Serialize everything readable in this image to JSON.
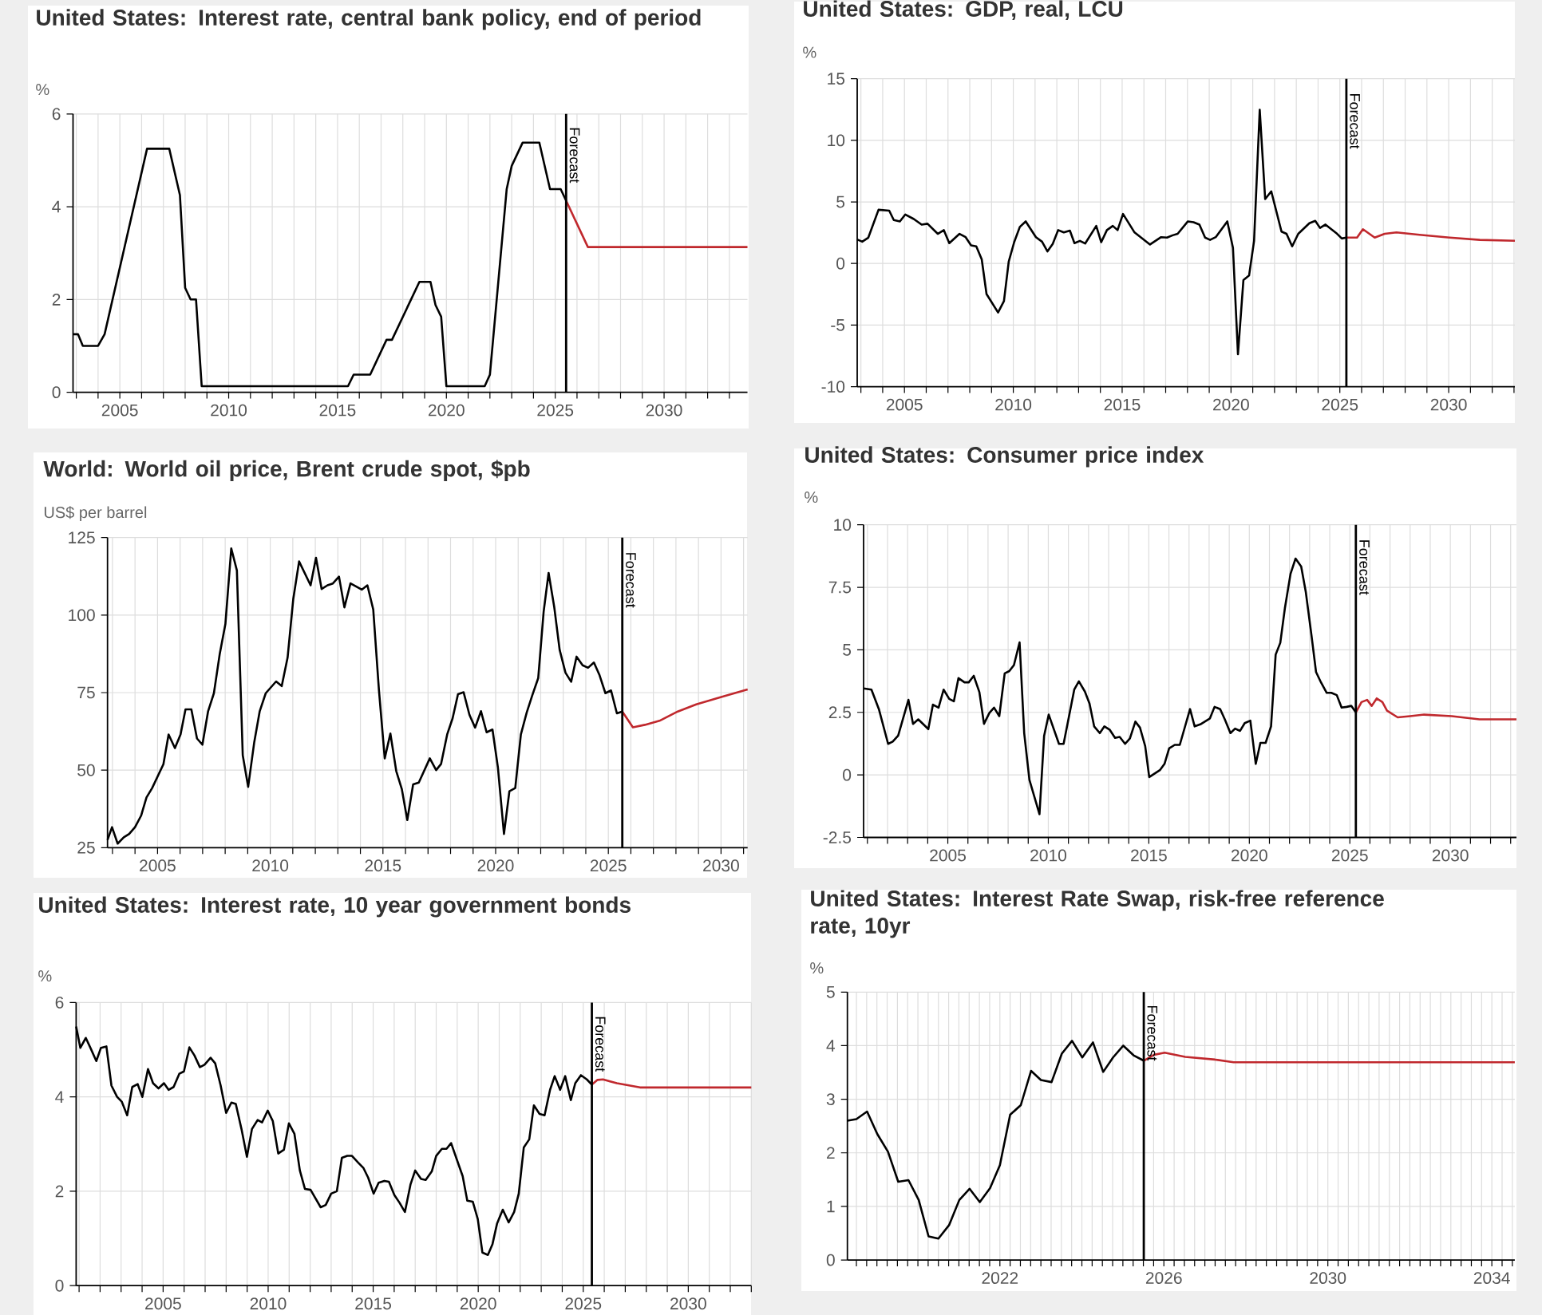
{
  "chart_data": [
    {
      "type": "line",
      "title": "United States: Interest rate, central bank policy, end of period",
      "ylabel": "%",
      "grid": true,
      "xlim": [
        2002.85,
        2033.83
      ],
      "ylim": [
        0,
        6
      ],
      "yticks": [
        0,
        2,
        4,
        6
      ],
      "xticks": [
        {
          "value": 2003,
          "label": null
        },
        {
          "value": 2004,
          "label": null
        },
        2005,
        {
          "value": 2006,
          "label": null
        },
        {
          "value": 2007,
          "label": null
        },
        {
          "value": 2008,
          "label": null
        },
        {
          "value": 2009,
          "label": null
        },
        2010,
        {
          "value": 2011,
          "label": null
        },
        {
          "value": 2012,
          "label": null
        },
        {
          "value": 2013,
          "label": null
        },
        {
          "value": 2014,
          "label": null
        },
        2015,
        {
          "value": 2016,
          "label": null
        },
        {
          "value": 2017,
          "label": null
        },
        {
          "value": 2018,
          "label": null
        },
        {
          "value": 2019,
          "label": null
        },
        2020,
        {
          "value": 2021,
          "label": null
        },
        {
          "value": 2022,
          "label": null
        },
        {
          "value": 2023,
          "label": null
        },
        {
          "value": 2024,
          "label": null
        },
        2025,
        {
          "value": 2026,
          "label": null
        },
        {
          "value": 2027,
          "label": null
        },
        {
          "value": 2028,
          "label": null
        },
        {
          "value": 2029,
          "label": null
        },
        2030,
        {
          "value": 2031,
          "label": null
        },
        {
          "value": 2032,
          "label": null
        },
        {
          "value": 2033,
          "label": null
        }
      ],
      "ref_lines": [
        {
          "axis": "x",
          "value": 2025.5,
          "label": "Forecast",
          "color": "#000000"
        }
      ],
      "series": [
        {
          "color": "#000000",
          "x": [
            2002.85,
            2003.08,
            2003.3,
            2004.0,
            2004.3,
            2006.25,
            2007.27,
            2007.76,
            2008.0,
            2008.25,
            2008.5,
            2008.76,
            2015.48,
            2015.74,
            2016.5,
            2017.25,
            2017.5,
            2018.76,
            2019.27,
            2019.5,
            2019.76,
            2020.0,
            2021.76,
            2022.0,
            2022.77,
            2023.0,
            2023.5,
            2024.27,
            2024.76,
            2025.25,
            2025.5
          ],
          "values": [
            1.25,
            1.25,
            1.0,
            1.0,
            1.25,
            5.25,
            5.25,
            4.25,
            2.25,
            2.0,
            2.0,
            0.13,
            0.13,
            0.38,
            0.38,
            1.13,
            1.13,
            2.38,
            2.38,
            1.88,
            1.63,
            0.13,
            0.13,
            0.38,
            4.38,
            4.88,
            5.38,
            5.38,
            4.38,
            4.38,
            4.13
          ]
        },
        {
          "color": "#c0282d",
          "x": [
            2025.5,
            2026.5,
            2027.0,
            2033.83
          ],
          "values": [
            4.13,
            3.13,
            3.13,
            3.13
          ]
        }
      ]
    },
    {
      "type": "line",
      "title": "United States: GDP, real, LCU",
      "ylabel": "%",
      "grid": true,
      "xlim": [
        2002.83,
        2033.04
      ],
      "ylim": [
        -10,
        15
      ],
      "yticks": [
        -10,
        -5,
        0,
        5,
        10,
        15
      ],
      "xticks": [
        {
          "value": 2003,
          "label": null
        },
        {
          "value": 2004,
          "label": null
        },
        2005,
        {
          "value": 2006,
          "label": null
        },
        {
          "value": 2007,
          "label": null
        },
        {
          "value": 2008,
          "label": null
        },
        {
          "value": 2009,
          "label": null
        },
        2010,
        {
          "value": 2011,
          "label": null
        },
        {
          "value": 2012,
          "label": null
        },
        {
          "value": 2013,
          "label": null
        },
        {
          "value": 2014,
          "label": null
        },
        2015,
        {
          "value": 2016,
          "label": null
        },
        {
          "value": 2017,
          "label": null
        },
        {
          "value": 2018,
          "label": null
        },
        {
          "value": 2019,
          "label": null
        },
        2020,
        {
          "value": 2021,
          "label": null
        },
        {
          "value": 2022,
          "label": null
        },
        {
          "value": 2023,
          "label": null
        },
        {
          "value": 2024,
          "label": null
        },
        2025,
        {
          "value": 2026,
          "label": null
        },
        {
          "value": 2027,
          "label": null
        },
        {
          "value": 2028,
          "label": null
        },
        {
          "value": 2029,
          "label": null
        },
        2030,
        {
          "value": 2031,
          "label": null
        },
        {
          "value": 2032,
          "label": null
        },
        {
          "value": 2033,
          "label": null
        }
      ],
      "ref_lines": [
        {
          "axis": "x",
          "value": 2025.3,
          "label": "Forecast",
          "color": "#000000"
        }
      ],
      "series": [
        {
          "color": "#000000",
          "x": [
            2002.83,
            2003.06,
            2003.34,
            2003.81,
            2004.3,
            2004.51,
            2004.79,
            2005.04,
            2005.43,
            2005.79,
            2006.06,
            2006.53,
            2006.81,
            2007.06,
            2007.53,
            2007.81,
            2008.06,
            2008.3,
            2008.55,
            2008.77,
            2009.3,
            2009.57,
            2009.79,
            2010.04,
            2010.3,
            2010.57,
            2011.04,
            2011.32,
            2011.57,
            2011.81,
            2012.06,
            2012.32,
            2012.6,
            2012.81,
            2013.06,
            2013.3,
            2013.81,
            2014.04,
            2014.3,
            2014.57,
            2014.79,
            2015.04,
            2015.57,
            2016.28,
            2016.79,
            2017.06,
            2017.32,
            2017.55,
            2018.02,
            2018.28,
            2018.55,
            2018.81,
            2019.04,
            2019.3,
            2019.83,
            2020.09,
            2020.32,
            2020.57,
            2020.83,
            2021.06,
            2021.32,
            2021.57,
            2021.85,
            2022.32,
            2022.55,
            2022.81,
            2023.09,
            2023.6,
            2023.87,
            2024.09,
            2024.34,
            2024.83,
            2025.09,
            2025.3
          ],
          "values": [
            1.95,
            1.77,
            2.1,
            4.36,
            4.29,
            3.53,
            3.42,
            3.98,
            3.61,
            3.16,
            3.23,
            2.41,
            2.71,
            1.65,
            2.41,
            2.14,
            1.47,
            1.39,
            0.34,
            -2.48,
            -3.98,
            -3.05,
            0.15,
            1.73,
            2.97,
            3.42,
            2.14,
            1.77,
            0.98,
            1.58,
            2.71,
            2.52,
            2.67,
            1.65,
            1.84,
            1.62,
            3.05,
            1.73,
            2.71,
            3.05,
            2.71,
            4.02,
            2.52,
            1.54,
            2.14,
            2.1,
            2.29,
            2.41,
            3.42,
            3.35,
            3.16,
            2.1,
            1.92,
            2.14,
            3.42,
            1.28,
            -7.37,
            -1.35,
            -0.98,
            1.84,
            12.48,
            5.23,
            5.86,
            2.59,
            2.41,
            1.39,
            2.41,
            3.27,
            3.46,
            2.89,
            3.16,
            2.48,
            2.03,
            2.1
          ]
        },
        {
          "color": "#c0282d",
          "x": [
            2025.3,
            2025.79,
            2026.06,
            2026.6,
            2027.06,
            2027.6,
            2028.66,
            2030.04,
            2031.43,
            2033.04
          ],
          "values": [
            2.1,
            2.1,
            2.78,
            2.1,
            2.41,
            2.52,
            2.33,
            2.1,
            1.92,
            1.84
          ]
        }
      ]
    },
    {
      "type": "line",
      "title": "World: World oil price, Brent crude spot, $pb",
      "ylabel": "US$ per barrel",
      "grid": true,
      "xlim": [
        2002.78,
        2031.18
      ],
      "ylim": [
        25,
        125
      ],
      "yticks": [
        25,
        50,
        75,
        100,
        125
      ],
      "xticks": [
        {
          "value": 2003,
          "label": null
        },
        {
          "value": 2004,
          "label": null
        },
        2005,
        {
          "value": 2006,
          "label": null
        },
        {
          "value": 2007,
          "label": null
        },
        {
          "value": 2008,
          "label": null
        },
        {
          "value": 2009,
          "label": null
        },
        2010,
        {
          "value": 2011,
          "label": null
        },
        {
          "value": 2012,
          "label": null
        },
        {
          "value": 2013,
          "label": null
        },
        {
          "value": 2014,
          "label": null
        },
        2015,
        {
          "value": 2016,
          "label": null
        },
        {
          "value": 2017,
          "label": null
        },
        {
          "value": 2018,
          "label": null
        },
        {
          "value": 2019,
          "label": null
        },
        2020,
        {
          "value": 2021,
          "label": null
        },
        {
          "value": 2022,
          "label": null
        },
        {
          "value": 2023,
          "label": null
        },
        {
          "value": 2024,
          "label": null
        },
        2025,
        {
          "value": 2026,
          "label": null
        },
        {
          "value": 2027,
          "label": null
        },
        {
          "value": 2028,
          "label": null
        },
        {
          "value": 2029,
          "label": null
        },
        2030,
        {
          "value": 2031,
          "label": null
        }
      ],
      "ref_lines": [
        {
          "axis": "x",
          "value": 2025.62,
          "label": "Forecast",
          "color": "#000000"
        }
      ],
      "series": [
        {
          "color": "#000000",
          "x": [
            2002.78,
            2002.98,
            2003.23,
            2003.5,
            2003.74,
            2004.0,
            2004.27,
            2004.51,
            2004.76,
            2005.26,
            2005.49,
            2005.77,
            2006.02,
            2006.24,
            2006.5,
            2006.75,
            2006.99,
            2007.24,
            2007.5,
            2007.76,
            2008.01,
            2008.27,
            2008.52,
            2008.78,
            2009.02,
            2009.29,
            2009.53,
            2009.8,
            2010.26,
            2010.51,
            2010.77,
            2011.02,
            2011.28,
            2011.79,
            2012.03,
            2012.28,
            2012.54,
            2012.78,
            2013.05,
            2013.29,
            2013.56,
            2014.06,
            2014.31,
            2014.57,
            2014.82,
            2015.08,
            2015.33,
            2015.59,
            2015.84,
            2016.08,
            2016.34,
            2016.59,
            2017.08,
            2017.36,
            2017.58,
            2017.85,
            2018.09,
            2018.33,
            2018.58,
            2018.84,
            2019.09,
            2019.35,
            2019.6,
            2019.86,
            2020.1,
            2020.37,
            2020.61,
            2020.87,
            2021.12,
            2021.38,
            2021.62,
            2021.89,
            2022.13,
            2022.35,
            2022.6,
            2022.84,
            2023.1,
            2023.35,
            2023.59,
            2023.86,
            2024.1,
            2024.36,
            2024.6,
            2024.87,
            2025.12,
            2025.38,
            2025.62
          ],
          "values": [
            27.5,
            31.6,
            26.3,
            28.3,
            29.4,
            31.6,
            35.3,
            41.2,
            44.2,
            51.9,
            61.5,
            57.1,
            61.5,
            69.6,
            69.6,
            60.2,
            58.2,
            68.9,
            74.8,
            87.5,
            97.1,
            121.5,
            114.4,
            54.8,
            44.6,
            59.0,
            68.9,
            74.8,
            78.6,
            77.1,
            86.3,
            105.1,
            117.3,
            109.6,
            118.5,
            108.4,
            109.6,
            110.2,
            112.4,
            102.5,
            110.2,
            108.2,
            109.6,
            101.8,
            76.0,
            53.8,
            61.8,
            49.7,
            43.8,
            33.9,
            45.4,
            46.0,
            53.8,
            50.0,
            52.0,
            61.5,
            66.7,
            74.5,
            75.1,
            67.8,
            63.7,
            69.0,
            62.2,
            63.1,
            50.9,
            29.4,
            43.2,
            44.2,
            61.5,
            68.6,
            74.0,
            79.7,
            101.1,
            113.6,
            102.6,
            88.8,
            81.4,
            78.5,
            86.6,
            83.8,
            83.0,
            84.7,
            80.8,
            74.8,
            75.7,
            68.3,
            68.9
          ]
        },
        {
          "color": "#c0282d",
          "x": [
            2025.62,
            2026.09,
            2026.62,
            2027.27,
            2028.08,
            2028.9,
            2030.01,
            2031.18
          ],
          "values": [
            68.9,
            63.8,
            64.6,
            65.9,
            68.9,
            71.2,
            73.6,
            76.0
          ]
        }
      ]
    },
    {
      "type": "line",
      "title": "United States: Consumer price index",
      "ylabel": "%",
      "grid": true,
      "xlim": [
        2000.81,
        2033.29
      ],
      "ylim": [
        -2.5,
        10
      ],
      "yticks": [
        -2.5,
        0,
        2.5,
        5,
        7.5,
        10
      ],
      "xticks": [
        {
          "value": 2001,
          "label": null
        },
        {
          "value": 2002,
          "label": null
        },
        {
          "value": 2003,
          "label": null
        },
        {
          "value": 2004,
          "label": null
        },
        2005,
        {
          "value": 2006,
          "label": null
        },
        {
          "value": 2007,
          "label": null
        },
        {
          "value": 2008,
          "label": null
        },
        {
          "value": 2009,
          "label": null
        },
        2010,
        {
          "value": 2011,
          "label": null
        },
        {
          "value": 2012,
          "label": null
        },
        {
          "value": 2013,
          "label": null
        },
        {
          "value": 2014,
          "label": null
        },
        2015,
        {
          "value": 2016,
          "label": null
        },
        {
          "value": 2017,
          "label": null
        },
        {
          "value": 2018,
          "label": null
        },
        {
          "value": 2019,
          "label": null
        },
        2020,
        {
          "value": 2021,
          "label": null
        },
        {
          "value": 2022,
          "label": null
        },
        {
          "value": 2023,
          "label": null
        },
        {
          "value": 2024,
          "label": null
        },
        2025,
        {
          "value": 2026,
          "label": null
        },
        {
          "value": 2027,
          "label": null
        },
        {
          "value": 2028,
          "label": null
        },
        {
          "value": 2029,
          "label": null
        },
        2030,
        {
          "value": 2031,
          "label": null
        },
        {
          "value": 2032,
          "label": null
        },
        {
          "value": 2033,
          "label": null
        }
      ],
      "ref_lines": [
        {
          "axis": "x",
          "value": 2025.3,
          "label": "Forecast",
          "color": "#000000"
        }
      ],
      "series": [
        {
          "color": "#000000",
          "x": [
            2000.81,
            2001.2,
            2001.57,
            2002.03,
            2002.26,
            2002.53,
            2003.04,
            2003.27,
            2003.53,
            2004.03,
            2004.26,
            2004.54,
            2004.79,
            2005.07,
            2005.3,
            2005.53,
            2005.83,
            2006.04,
            2006.29,
            2006.57,
            2006.8,
            2007.07,
            2007.3,
            2007.56,
            2007.83,
            2008.06,
            2008.29,
            2008.57,
            2008.8,
            2009.06,
            2009.56,
            2009.79,
            2010.02,
            2010.53,
            2010.76,
            2011.29,
            2011.52,
            2011.82,
            2012.05,
            2012.28,
            2012.56,
            2012.79,
            2013.06,
            2013.32,
            2013.55,
            2013.82,
            2014.06,
            2014.33,
            2014.56,
            2014.82,
            2015.02,
            2015.55,
            2015.78,
            2016.01,
            2016.29,
            2016.54,
            2017.05,
            2017.28,
            2017.56,
            2018.04,
            2018.27,
            2018.55,
            2018.78,
            2019.06,
            2019.29,
            2019.54,
            2019.77,
            2020.05,
            2020.32,
            2020.55,
            2020.81,
            2021.08,
            2021.31,
            2021.54,
            2021.77,
            2022.05,
            2022.3,
            2022.58,
            2022.81,
            2023.09,
            2023.32,
            2023.57,
            2023.85,
            2024.08,
            2024.35,
            2024.59,
            2024.84,
            2025.07,
            2025.3
          ],
          "values": [
            3.46,
            3.41,
            2.63,
            1.24,
            1.33,
            1.57,
            3.0,
            2.04,
            2.22,
            1.83,
            2.81,
            2.69,
            3.41,
            3.04,
            2.94,
            3.87,
            3.7,
            3.7,
            3.96,
            3.31,
            2.04,
            2.48,
            2.69,
            2.35,
            4.06,
            4.15,
            4.39,
            5.3,
            1.67,
            -0.2,
            -1.57,
            1.56,
            2.41,
            1.24,
            1.24,
            3.41,
            3.74,
            3.33,
            2.85,
            1.94,
            1.67,
            1.94,
            1.8,
            1.48,
            1.52,
            1.24,
            1.46,
            2.13,
            1.89,
            1.15,
            -0.09,
            0.19,
            0.44,
            1.06,
            1.2,
            1.2,
            2.63,
            1.94,
            2.02,
            2.26,
            2.72,
            2.63,
            2.22,
            1.67,
            1.85,
            1.76,
            2.07,
            2.17,
            0.44,
            1.28,
            1.28,
            1.94,
            4.81,
            5.28,
            6.67,
            8.04,
            8.65,
            8.33,
            7.31,
            5.59,
            4.11,
            3.69,
            3.28,
            3.28,
            3.19,
            2.69,
            2.72,
            2.76,
            2.5
          ]
        },
        {
          "color": "#c0282d",
          "x": [
            2025.3,
            2025.58,
            2025.86,
            2026.09,
            2026.34,
            2026.62,
            2026.85,
            2027.38,
            2028.0,
            2028.69,
            2030.07,
            2031.45,
            2033.29
          ],
          "values": [
            2.5,
            2.91,
            3.0,
            2.76,
            3.06,
            2.91,
            2.57,
            2.3,
            2.35,
            2.41,
            2.35,
            2.22,
            2.22
          ]
        }
      ]
    },
    {
      "type": "line",
      "title": "United States: Interest rate, 10 year government bonds",
      "ylabel": "%",
      "grid": true,
      "xlim": [
        2000.86,
        2033.0
      ],
      "ylim": [
        0,
        6
      ],
      "yticks": [
        0,
        2,
        4,
        6
      ],
      "xticks": [
        {
          "value": 2001,
          "label": null
        },
        {
          "value": 2002,
          "label": null
        },
        {
          "value": 2003,
          "label": null
        },
        {
          "value": 2004,
          "label": null
        },
        2005,
        {
          "value": 2006,
          "label": null
        },
        {
          "value": 2007,
          "label": null
        },
        {
          "value": 2008,
          "label": null
        },
        {
          "value": 2009,
          "label": null
        },
        2010,
        {
          "value": 2011,
          "label": null
        },
        {
          "value": 2012,
          "label": null
        },
        {
          "value": 2013,
          "label": null
        },
        {
          "value": 2014,
          "label": null
        },
        2015,
        {
          "value": 2016,
          "label": null
        },
        {
          "value": 2017,
          "label": null
        },
        {
          "value": 2018,
          "label": null
        },
        {
          "value": 2019,
          "label": null
        },
        2020,
        {
          "value": 2021,
          "label": null
        },
        {
          "value": 2022,
          "label": null
        },
        {
          "value": 2023,
          "label": null
        },
        {
          "value": 2024,
          "label": null
        },
        2025,
        {
          "value": 2026,
          "label": null
        },
        {
          "value": 2027,
          "label": null
        },
        {
          "value": 2028,
          "label": null
        },
        {
          "value": 2029,
          "label": null
        },
        2030,
        {
          "value": 2031,
          "label": null
        },
        {
          "value": 2032,
          "label": null
        },
        {
          "value": 2033,
          "label": null
        }
      ],
      "ref_lines": [
        {
          "axis": "x",
          "value": 2025.41,
          "label": "Forecast",
          "color": "#000000"
        }
      ],
      "series": [
        {
          "color": "#000000",
          "x": [
            2000.86,
            2001.06,
            2001.32,
            2001.56,
            2001.82,
            2002.04,
            2002.3,
            2002.54,
            2002.81,
            2003.03,
            2003.29,
            2003.53,
            2003.79,
            2004.01,
            2004.28,
            2004.52,
            2004.78,
            2005.04,
            2005.26,
            2005.5,
            2005.77,
            2005.99,
            2006.25,
            2006.49,
            2006.75,
            2006.97,
            2007.26,
            2007.48,
            2007.74,
            2008.0,
            2008.25,
            2008.46,
            2008.73,
            2008.99,
            2009.23,
            2009.5,
            2009.71,
            2009.98,
            2010.22,
            2010.48,
            2010.75,
            2010.99,
            2011.25,
            2011.51,
            2011.75,
            2012.02,
            2012.5,
            2012.74,
            2013.0,
            2013.27,
            2013.51,
            2013.77,
            2013.99,
            2014.28,
            2014.54,
            2014.76,
            2015.02,
            2015.26,
            2015.53,
            2015.75,
            2016.01,
            2016.25,
            2016.51,
            2016.78,
            2017.0,
            2017.28,
            2017.5,
            2017.79,
            2018.0,
            2018.27,
            2018.49,
            2018.71,
            2019.0,
            2019.26,
            2019.48,
            2019.74,
            2019.98,
            2020.2,
            2020.46,
            2020.68,
            2020.9,
            2021.17,
            2021.45,
            2021.71,
            2021.93,
            2022.17,
            2022.43,
            2022.65,
            2022.92,
            2023.16,
            2023.42,
            2023.64,
            2023.9,
            2024.14,
            2024.41,
            2024.62,
            2024.89,
            2025.17,
            2025.41
          ],
          "values": [
            5.49,
            5.04,
            5.25,
            5.02,
            4.76,
            5.04,
            5.07,
            4.24,
            4.0,
            3.9,
            3.61,
            4.21,
            4.27,
            4.0,
            4.59,
            4.29,
            4.18,
            4.29,
            4.15,
            4.21,
            4.49,
            4.54,
            5.05,
            4.88,
            4.63,
            4.68,
            4.83,
            4.71,
            4.24,
            3.66,
            3.88,
            3.85,
            3.32,
            2.73,
            3.32,
            3.51,
            3.46,
            3.71,
            3.49,
            2.8,
            2.88,
            3.44,
            3.22,
            2.44,
            2.05,
            2.03,
            1.66,
            1.71,
            1.95,
            2.0,
            2.71,
            2.75,
            2.75,
            2.61,
            2.49,
            2.29,
            1.95,
            2.18,
            2.22,
            2.2,
            1.92,
            1.76,
            1.56,
            2.15,
            2.44,
            2.26,
            2.24,
            2.42,
            2.75,
            2.9,
            2.9,
            3.02,
            2.65,
            2.32,
            1.8,
            1.78,
            1.41,
            0.7,
            0.65,
            0.88,
            1.32,
            1.61,
            1.34,
            1.56,
            1.95,
            2.93,
            3.1,
            3.82,
            3.64,
            3.61,
            4.15,
            4.44,
            4.15,
            4.44,
            3.93,
            4.29,
            4.46,
            4.37,
            4.26
          ]
        },
        {
          "color": "#c0282d",
          "x": [
            2025.41,
            2025.68,
            2025.94,
            2026.6,
            2027.7,
            2029.45,
            2033.0
          ],
          "values": [
            4.26,
            4.36,
            4.37,
            4.29,
            4.2,
            4.2,
            4.2
          ]
        }
      ]
    },
    {
      "type": "line",
      "title": "United States: Interest Rate Swap, risk-free reference rate, 10yr",
      "ylabel": "%",
      "grid": true,
      "xlim": [
        2018.28,
        2034.56
      ],
      "ylim": [
        0,
        5
      ],
      "yticks": [
        0,
        1,
        2,
        3,
        4,
        5
      ],
      "xticks": [
        {
          "value": 2018.5,
          "label": null
        },
        {
          "value": 2018.75,
          "label": null
        },
        {
          "value": 2019,
          "label": null
        },
        {
          "value": 2019.25,
          "label": null
        },
        {
          "value": 2019.5,
          "label": null
        },
        {
          "value": 2019.75,
          "label": null
        },
        {
          "value": 2020,
          "label": null
        },
        {
          "value": 2020.25,
          "label": null
        },
        {
          "value": 2020.5,
          "label": null
        },
        {
          "value": 2020.75,
          "label": null
        },
        {
          "value": 2021,
          "label": null
        },
        {
          "value": 2021.25,
          "label": null
        },
        {
          "value": 2021.5,
          "label": null
        },
        {
          "value": 2021.75,
          "label": null
        },
        2022,
        {
          "value": 2022.25,
          "label": null
        },
        {
          "value": 2022.5,
          "label": null
        },
        {
          "value": 2022.75,
          "label": null
        },
        {
          "value": 2023,
          "label": null
        },
        {
          "value": 2023.25,
          "label": null
        },
        {
          "value": 2023.5,
          "label": null
        },
        {
          "value": 2023.75,
          "label": null
        },
        {
          "value": 2024,
          "label": null
        },
        {
          "value": 2024.25,
          "label": null
        },
        {
          "value": 2024.5,
          "label": null
        },
        {
          "value": 2024.75,
          "label": null
        },
        {
          "value": 2025,
          "label": null
        },
        {
          "value": 2025.25,
          "label": null
        },
        {
          "value": 2025.5,
          "label": null
        },
        {
          "value": 2025.75,
          "label": null
        },
        2026,
        {
          "value": 2026.25,
          "label": null
        },
        {
          "value": 2026.5,
          "label": null
        },
        {
          "value": 2026.75,
          "label": null
        },
        {
          "value": 2027,
          "label": null
        },
        {
          "value": 2027.25,
          "label": null
        },
        {
          "value": 2027.5,
          "label": null
        },
        {
          "value": 2027.75,
          "label": null
        },
        {
          "value": 2028,
          "label": null
        },
        {
          "value": 2028.25,
          "label": null
        },
        {
          "value": 2028.5,
          "label": null
        },
        {
          "value": 2028.75,
          "label": null
        },
        {
          "value": 2029,
          "label": null
        },
        {
          "value": 2029.25,
          "label": null
        },
        {
          "value": 2029.5,
          "label": null
        },
        {
          "value": 2029.75,
          "label": null
        },
        2030,
        {
          "value": 2030.25,
          "label": null
        },
        {
          "value": 2030.5,
          "label": null
        },
        {
          "value": 2030.75,
          "label": null
        },
        {
          "value": 2031,
          "label": null
        },
        {
          "value": 2031.25,
          "label": null
        },
        {
          "value": 2031.5,
          "label": null
        },
        {
          "value": 2031.75,
          "label": null
        },
        {
          "value": 2032,
          "label": null
        },
        {
          "value": 2032.25,
          "label": null
        },
        {
          "value": 2032.5,
          "label": null
        },
        {
          "value": 2032.75,
          "label": null
        },
        {
          "value": 2033,
          "label": null
        },
        {
          "value": 2033.25,
          "label": null
        },
        {
          "value": 2033.5,
          "label": null
        },
        {
          "value": 2033.75,
          "label": null
        },
        2034,
        {
          "value": 2034.25,
          "label": null
        },
        {
          "value": 2034.5,
          "label": null
        }
      ],
      "ref_lines": [
        {
          "axis": "x",
          "value": 2025.51,
          "label": "Forecast",
          "color": "#000000"
        }
      ],
      "series": [
        {
          "color": "#000000",
          "x": [
            2018.28,
            2018.5,
            2018.76,
            2019.01,
            2019.27,
            2019.52,
            2019.77,
            2020.02,
            2020.26,
            2020.5,
            2020.76,
            2021.01,
            2021.26,
            2021.51,
            2021.76,
            2022.0,
            2022.25,
            2022.51,
            2022.76,
            2023.0,
            2023.26,
            2023.51,
            2023.76,
            2024.01,
            2024.27,
            2024.52,
            2024.76,
            2025.01,
            2025.26,
            2025.51
          ],
          "values": [
            2.6,
            2.63,
            2.77,
            2.35,
            2.02,
            1.46,
            1.49,
            1.12,
            0.44,
            0.4,
            0.65,
            1.12,
            1.33,
            1.08,
            1.34,
            1.77,
            2.71,
            2.89,
            3.53,
            3.36,
            3.32,
            3.85,
            4.09,
            3.78,
            4.06,
            3.51,
            3.78,
            4.0,
            3.82,
            3.72
          ]
        },
        {
          "color": "#c0282d",
          "x": [
            2025.51,
            2025.76,
            2026.02,
            2026.52,
            2027.25,
            2027.7,
            2034.56
          ],
          "values": [
            3.72,
            3.83,
            3.87,
            3.79,
            3.74,
            3.69,
            3.69
          ]
        }
      ]
    }
  ]
}
